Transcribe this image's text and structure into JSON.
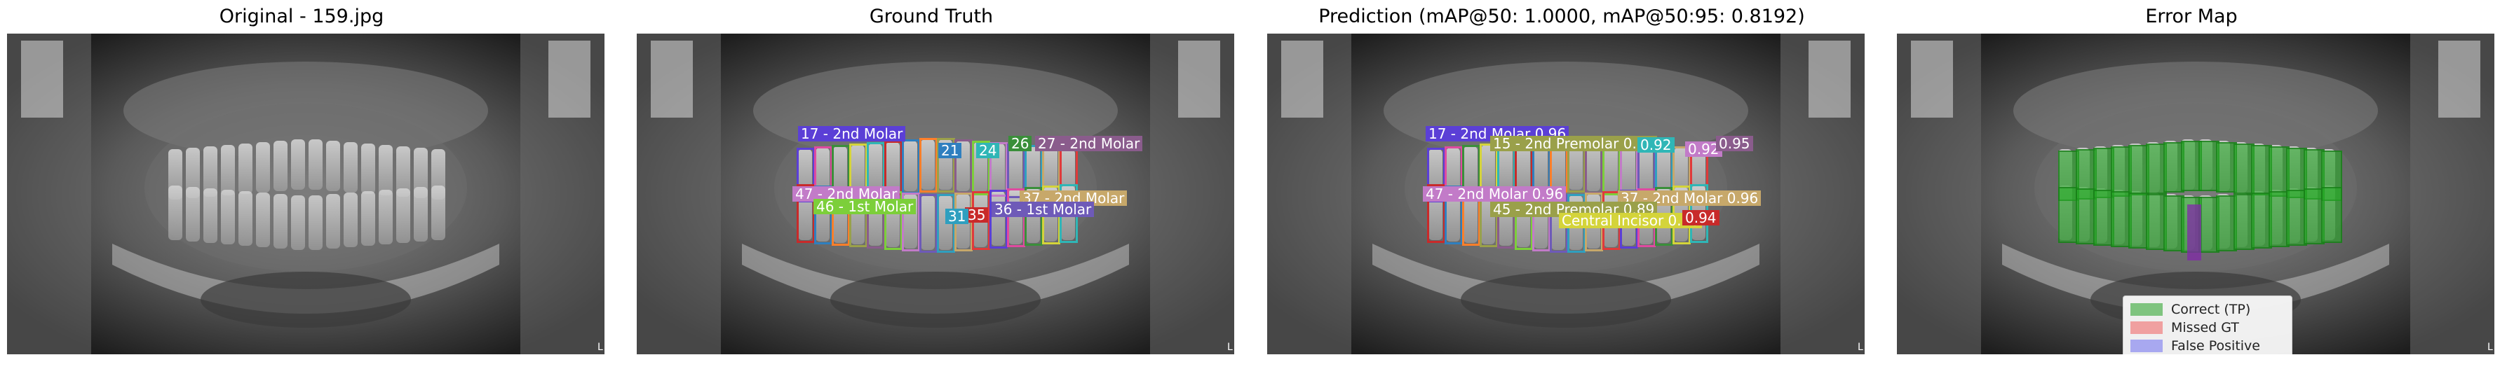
{
  "panels": [
    {
      "title": "Original - 159.jpg"
    },
    {
      "title": "Ground Truth"
    },
    {
      "title": "Prediction (mAP@50: 1.0000, mAP@50:95: 0.8192)"
    },
    {
      "title": "Error Map"
    }
  ],
  "ground_truth_labels": [
    {
      "text": "17 - 2nd Molar",
      "color": "#5b3fd6"
    },
    {
      "text": "26",
      "color": "#3a8f3a"
    },
    {
      "text": "27 - 2nd Molar",
      "color": "#8a5c8c"
    },
    {
      "text": "21",
      "color": "#2f7fbf"
    },
    {
      "text": "24",
      "color": "#2fb6b6"
    },
    {
      "text": "47 - 2nd Molar",
      "color": "#c27bc8"
    },
    {
      "text": "46 - 1st Molar",
      "color": "#7ccf3a"
    },
    {
      "text": "37 - 2nd Molar",
      "color": "#c7a86a"
    },
    {
      "text": "36 - 1st Molar",
      "color": "#6e5ab8"
    },
    {
      "text": "35",
      "color": "#c82a2a"
    },
    {
      "text": "31",
      "color": "#2f9fbf"
    }
  ],
  "prediction_labels": [
    {
      "text": "17 - 2nd Molar 0.96",
      "color": "#5b3fd6"
    },
    {
      "text": "15 - 2nd Premolar 0.91",
      "color": "#9aa04a"
    },
    {
      "text": "0.92",
      "color": "#2fb6b6"
    },
    {
      "text": "0.92",
      "color": "#c27bc8"
    },
    {
      "text": "0.95",
      "color": "#8a5c8c"
    },
    {
      "text": "47 - 2nd Molar 0.96",
      "color": "#c27bc8"
    },
    {
      "text": "37 - 2nd Molar 0.96",
      "color": "#c7a86a"
    },
    {
      "text": "45 - 2nd Premolar 0.89",
      "color": "#9aa04a"
    },
    {
      "text": "Central Incisor 0.76",
      "color": "#d4d43a"
    },
    {
      "text": "0.94",
      "color": "#c82a2a"
    }
  ],
  "legend": [
    {
      "label": "Correct (TP)",
      "color": "#7fc47f"
    },
    {
      "label": "Missed GT",
      "color": "#f0a0a0"
    },
    {
      "label": "False Positive",
      "color": "#a8a8f0"
    }
  ],
  "corner_mark": "L"
}
